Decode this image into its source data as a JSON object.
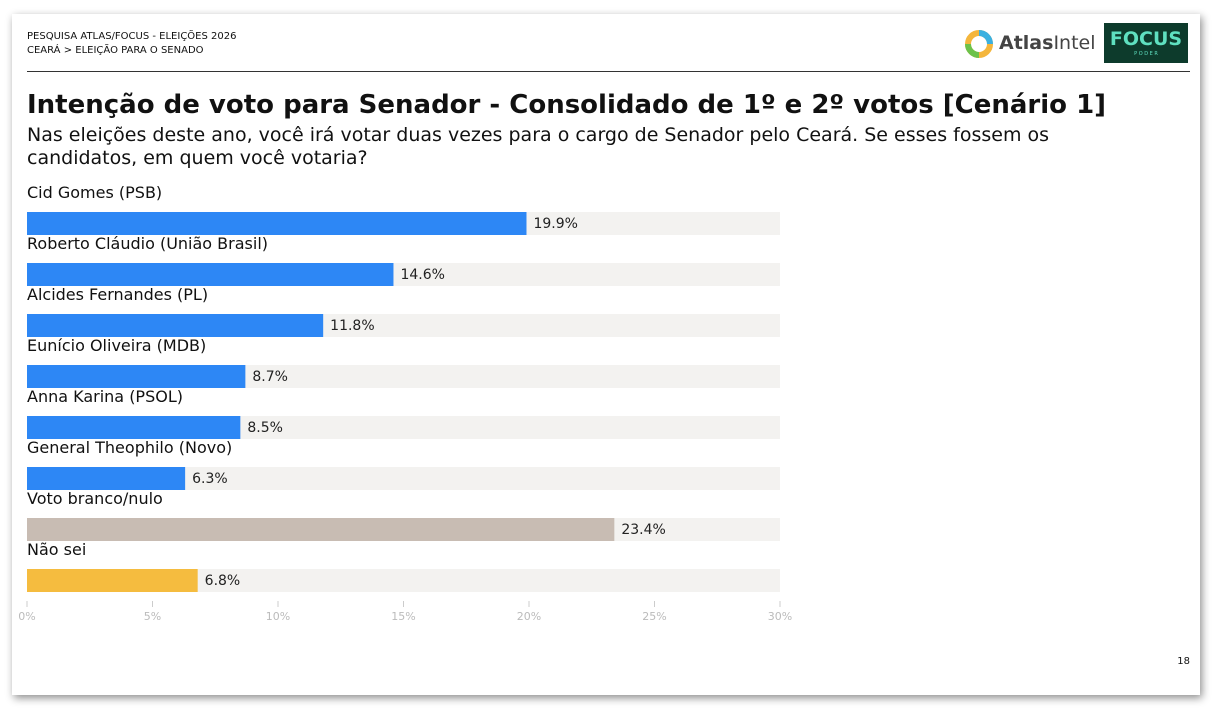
{
  "header": {
    "line1": "PESQUISA ATLAS/FOCUS - ELEIÇÕES 2026",
    "line2": "CEARÁ > ELEIÇÃO PARA O SENADO"
  },
  "logos": {
    "atlas_bold": "Atlas",
    "atlas_light": "Intel",
    "focus": "FOCUS",
    "focus_sub": "P O D E R"
  },
  "page_number": "18",
  "chart_data": {
    "type": "hbar",
    "title": "Intenção de voto para Senador - Consolidado de 1º e 2º votos [Cenário 1]",
    "subtitle": "Nas eleições deste ano, você irá votar duas vezes para o cargo de Senador pelo Ceará. Se esses fossem os candidatos, em quem você votaria?",
    "categories": [
      "Cid Gomes (PSB)",
      "Roberto Cláudio (União Brasil)",
      "Alcides Fernandes (PL)",
      "Eunício Oliveira (MDB)",
      "Anna Karina (PSOL)",
      "General Theophilo (Novo)",
      "Voto branco/nulo",
      "Não sei"
    ],
    "values": [
      19.9,
      14.6,
      11.8,
      8.7,
      8.5,
      6.3,
      23.4,
      6.8
    ],
    "value_labels": [
      "19.9%",
      "14.6%",
      "11.8%",
      "8.7%",
      "8.5%",
      "6.3%",
      "23.4%",
      "6.8%"
    ],
    "colors": [
      "#2d87f5",
      "#2d87f5",
      "#2d87f5",
      "#2d87f5",
      "#2d87f5",
      "#2d87f5",
      "#c8bcb3",
      "#f5bc3f"
    ],
    "xlim": [
      0,
      30
    ],
    "xticks": [
      {
        "value": 0,
        "label": "0%"
      },
      {
        "value": 5,
        "label": "5%"
      },
      {
        "value": 10,
        "label": "10%"
      },
      {
        "value": 15,
        "label": "15%"
      },
      {
        "value": 20,
        "label": "20%"
      },
      {
        "value": 25,
        "label": "25%"
      },
      {
        "value": 30,
        "label": "30%"
      }
    ]
  }
}
